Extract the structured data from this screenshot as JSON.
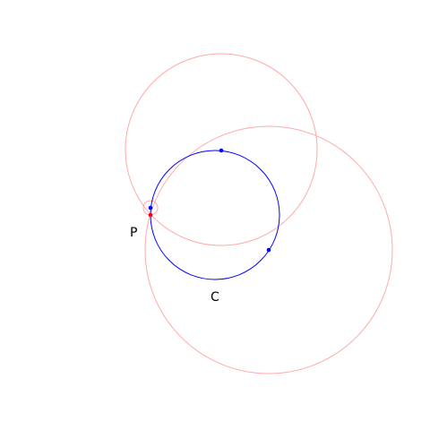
{
  "labels": {
    "point_p": "P",
    "circle_c": "C"
  },
  "colors": {
    "background": "#ffffff",
    "main_circle": "#0000ff",
    "construction_circle": "#ffaaaa",
    "blue_point": "#0000ff",
    "red_point": "#ff0000",
    "label_text": "#000000"
  }
}
